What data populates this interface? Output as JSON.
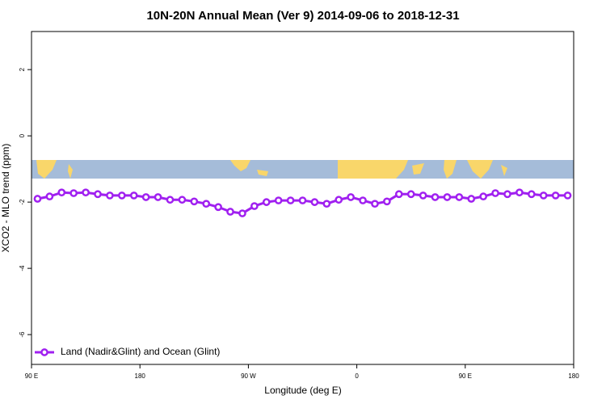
{
  "chart_data": {
    "type": "line",
    "title": "10N-20N Annual Mean (Ver 9)   2014-09-06 to 2018-12-31",
    "x_label": "Longitude (deg E)",
    "y_label": "XCO2 - MLO trend (ppm)",
    "x": [
      95,
      105,
      115,
      125,
      135,
      145,
      155,
      165,
      175,
      185,
      195,
      205,
      215,
      225,
      235,
      245,
      255,
      265,
      275,
      285,
      295,
      305,
      315,
      325,
      335,
      345,
      355,
      365,
      375,
      385,
      395,
      405,
      415,
      425,
      435,
      445,
      455,
      465,
      475,
      485,
      495,
      505,
      515,
      525,
      535
    ],
    "series": [
      {
        "name": "Land (Nadir&Glint) and Ocean (Glint)",
        "color": "#a020f0",
        "values": [
          -1.9,
          -1.83,
          -1.71,
          -1.73,
          -1.71,
          -1.76,
          -1.8,
          -1.8,
          -1.8,
          -1.85,
          -1.85,
          -1.93,
          -1.93,
          -1.98,
          -2.05,
          -2.15,
          -2.29,
          -2.34,
          -2.12,
          -2.0,
          -1.95,
          -1.95,
          -1.95,
          -2.0,
          -2.05,
          -1.93,
          -1.85,
          -1.95,
          -2.05,
          -1.98,
          -1.76,
          -1.76,
          -1.8,
          -1.85,
          -1.85,
          -1.85,
          -1.9,
          -1.83,
          -1.73,
          -1.76,
          -1.71,
          -1.76,
          -1.8,
          -1.8,
          -1.8
        ]
      }
    ],
    "xlim": [
      90,
      540
    ],
    "xticks": [
      {
        "value": 90,
        "label": "90 E"
      },
      180,
      {
        "value": 270,
        "label": "90 W"
      },
      {
        "value": 360,
        "label": "0"
      },
      {
        "value": 450,
        "label": "90 E"
      },
      {
        "value": 540,
        "label": "180"
      }
    ],
    "ylim": [
      -6.9,
      3.15
    ],
    "yticks": [
      2,
      0,
      -2,
      -4,
      -6
    ],
    "legend": "bottom-left"
  }
}
